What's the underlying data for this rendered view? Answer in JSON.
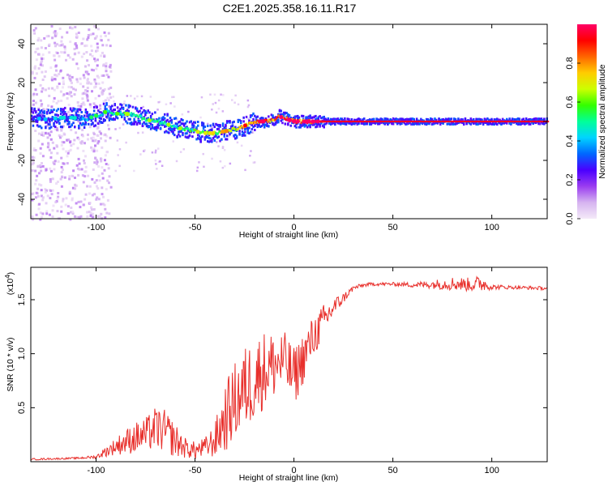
{
  "title": "C2E1.2025.358.16.11.R17",
  "chart_data": [
    {
      "type": "heatmap",
      "name": "spectrogram",
      "xlabel": "Height of straight line (km)",
      "ylabel": "Frequency (Hz)",
      "xlim": [
        -133,
        128
      ],
      "ylim": [
        -50,
        50
      ],
      "xticks": [
        -100,
        -50,
        0,
        50,
        100
      ],
      "xtick_labels": [
        "-100",
        "-50",
        "0",
        "50",
        "100"
      ],
      "yticks": [
        -40,
        -20,
        0,
        20,
        40
      ],
      "ytick_labels": [
        "-40",
        "-20",
        "0",
        "20",
        "40"
      ],
      "colorbar": {
        "label": "Normalized spectral amplitude",
        "range": [
          0,
          1
        ],
        "ticks": [
          0,
          0.2,
          0.4,
          0.6,
          0.8
        ],
        "tick_labels": [
          "0.0",
          "0.2",
          "0.4",
          "0.6",
          "0.8"
        ],
        "colors": [
          "#f4eaf8",
          "#d6b4f0",
          "#9a3cf0",
          "#4a00ff",
          "#0066ff",
          "#00d4ff",
          "#00ff99",
          "#33ff00",
          "#ccff00",
          "#ffcc00",
          "#ff6600",
          "#ff0000",
          "#ff0066"
        ]
      },
      "ridge": {
        "x": [
          -133,
          -125,
          -118,
          -112,
          -106,
          -100,
          -95,
          -90,
          -85,
          -80,
          -75,
          -70,
          -65,
          -60,
          -55,
          -50,
          -45,
          -40,
          -35,
          -30,
          -27,
          -22,
          -18,
          -14,
          -10,
          -8,
          -6,
          -3,
          0,
          3,
          6,
          10,
          15,
          20,
          40,
          60,
          80,
          100,
          128
        ],
        "freq": [
          2,
          1,
          2,
          2,
          1,
          3,
          5,
          4,
          4,
          3,
          1,
          0,
          -1,
          -3,
          -4,
          -5,
          -6,
          -6,
          -5,
          -4,
          -3,
          -1,
          0,
          0,
          1,
          3,
          2,
          1,
          0,
          0,
          0,
          0,
          0,
          0,
          0,
          0,
          0,
          0,
          0
        ],
        "amplitude": [
          0.3,
          0.3,
          0.35,
          0.35,
          0.4,
          0.45,
          0.5,
          0.5,
          0.55,
          0.55,
          0.55,
          0.55,
          0.55,
          0.55,
          0.55,
          0.6,
          0.6,
          0.65,
          0.7,
          0.75,
          0.8,
          0.85,
          0.88,
          0.9,
          0.9,
          0.92,
          0.92,
          0.95,
          0.95,
          0.95,
          0.95,
          0.95,
          0.95,
          0.95,
          0.95,
          0.95,
          0.95,
          0.95,
          0.95
        ]
      }
    },
    {
      "type": "line",
      "name": "snr",
      "xlabel": "Height of straight line (km)",
      "ylabel": "SNR (10 * v/v)",
      "y_multiplier": "(x10",
      "y_multiplier_exp": "4",
      "y_multiplier_close": ")",
      "xlim": [
        -133,
        128
      ],
      "ylim": [
        0,
        1.8
      ],
      "xticks": [
        -100,
        -50,
        0,
        50,
        100
      ],
      "xtick_labels": [
        "-100",
        "-50",
        "0",
        "50",
        "100"
      ],
      "yticks": [
        0.5,
        1.0,
        1.5
      ],
      "ytick_labels": [
        "0.5",
        "1.0",
        "1.5"
      ],
      "line_color": "#e8302c",
      "envelope": {
        "x": [
          -133,
          -110,
          -100,
          -95,
          -90,
          -85,
          -80,
          -75,
          -70,
          -65,
          -60,
          -55,
          -50,
          -45,
          -40,
          -35,
          -30,
          -25,
          -20,
          -15,
          -10,
          -5,
          0,
          5,
          10,
          15,
          20,
          25,
          30,
          35,
          40,
          50,
          60,
          70,
          80,
          90,
          95,
          100,
          110,
          128
        ],
        "base": [
          0.02,
          0.03,
          0.04,
          0.08,
          0.12,
          0.15,
          0.18,
          0.2,
          0.25,
          0.22,
          0.15,
          0.1,
          0.08,
          0.1,
          0.15,
          0.3,
          0.45,
          0.55,
          0.65,
          0.75,
          0.8,
          0.85,
          0.7,
          0.9,
          1.1,
          1.25,
          1.4,
          1.5,
          1.6,
          1.63,
          1.64,
          1.64,
          1.63,
          1.63,
          1.63,
          1.62,
          1.63,
          1.61,
          1.61,
          1.6
        ],
        "noise": [
          0.01,
          0.01,
          0.02,
          0.06,
          0.1,
          0.15,
          0.18,
          0.2,
          0.25,
          0.25,
          0.2,
          0.12,
          0.1,
          0.12,
          0.2,
          0.4,
          0.45,
          0.5,
          0.5,
          0.45,
          0.4,
          0.35,
          0.35,
          0.3,
          0.25,
          0.2,
          0.12,
          0.06,
          0.03,
          0.02,
          0.02,
          0.02,
          0.03,
          0.05,
          0.08,
          0.08,
          0.1,
          0.03,
          0.02,
          0.02
        ]
      }
    }
  ]
}
